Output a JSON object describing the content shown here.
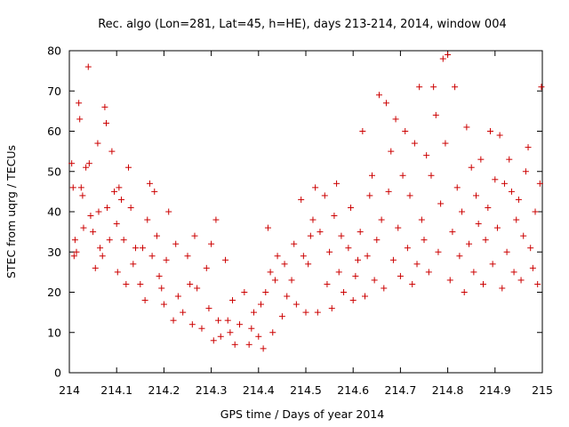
{
  "chart_data": {
    "type": "scatter",
    "title": "Rec. algo (Lon=281, Lat=45, h=HE), days 213-214, 2014, window 004",
    "xlabel": "GPS time / Days of year 2014",
    "ylabel": "STEC from uqrg / TECUs",
    "xlim": [
      214,
      215
    ],
    "ylim": [
      0,
      80
    ],
    "x_ticks": [
      "214",
      "214.1",
      "214.2",
      "214.3",
      "214.4",
      "214.5",
      "214.6",
      "214.7",
      "214.8",
      "214.9",
      "215"
    ],
    "y_ticks": [
      "0",
      "10",
      "20",
      "30",
      "40",
      "50",
      "60",
      "70",
      "80"
    ],
    "grid": false,
    "marker": "plus",
    "color": "#cc0000",
    "series": [
      {
        "points": [
          [
            214.005,
            52
          ],
          [
            214.008,
            46
          ],
          [
            214.01,
            29
          ],
          [
            214.012,
            33
          ],
          [
            214.015,
            30
          ],
          [
            214.02,
            67
          ],
          [
            214.022,
            63
          ],
          [
            214.025,
            46
          ],
          [
            214.028,
            44
          ],
          [
            214.03,
            36
          ],
          [
            214.035,
            51
          ],
          [
            214.04,
            76
          ],
          [
            214.042,
            52
          ],
          [
            214.045,
            39
          ],
          [
            214.05,
            35
          ],
          [
            214.055,
            26
          ],
          [
            214.06,
            57
          ],
          [
            214.062,
            40
          ],
          [
            214.065,
            31
          ],
          [
            214.07,
            29
          ],
          [
            214.075,
            66
          ],
          [
            214.078,
            62
          ],
          [
            214.08,
            41
          ],
          [
            214.085,
            33
          ],
          [
            214.09,
            55
          ],
          [
            214.095,
            45
          ],
          [
            214.1,
            37
          ],
          [
            214.102,
            25
          ],
          [
            214.105,
            46
          ],
          [
            214.11,
            43
          ],
          [
            214.115,
            33
          ],
          [
            214.12,
            22
          ],
          [
            214.125,
            51
          ],
          [
            214.13,
            41
          ],
          [
            214.135,
            27
          ],
          [
            214.14,
            31
          ],
          [
            214.15,
            22
          ],
          [
            214.155,
            31
          ],
          [
            214.16,
            18
          ],
          [
            214.165,
            38
          ],
          [
            214.17,
            47
          ],
          [
            214.175,
            29
          ],
          [
            214.18,
            45
          ],
          [
            214.185,
            34
          ],
          [
            214.19,
            24
          ],
          [
            214.195,
            21
          ],
          [
            214.2,
            17
          ],
          [
            214.205,
            28
          ],
          [
            214.21,
            40
          ],
          [
            214.22,
            13
          ],
          [
            214.225,
            32
          ],
          [
            214.23,
            19
          ],
          [
            214.24,
            15
          ],
          [
            214.25,
            29
          ],
          [
            214.255,
            22
          ],
          [
            214.26,
            12
          ],
          [
            214.265,
            34
          ],
          [
            214.27,
            21
          ],
          [
            214.28,
            11
          ],
          [
            214.29,
            26
          ],
          [
            214.295,
            16
          ],
          [
            214.3,
            32
          ],
          [
            214.305,
            8
          ],
          [
            214.31,
            38
          ],
          [
            214.315,
            13
          ],
          [
            214.32,
            9
          ],
          [
            214.33,
            28
          ],
          [
            214.335,
            13
          ],
          [
            214.34,
            10
          ],
          [
            214.345,
            18
          ],
          [
            214.35,
            7
          ],
          [
            214.36,
            12
          ],
          [
            214.37,
            20
          ],
          [
            214.38,
            7
          ],
          [
            214.385,
            11
          ],
          [
            214.39,
            15
          ],
          [
            214.4,
            9
          ],
          [
            214.405,
            17
          ],
          [
            214.41,
            6
          ],
          [
            214.415,
            20
          ],
          [
            214.42,
            36
          ],
          [
            214.425,
            25
          ],
          [
            214.43,
            10
          ],
          [
            214.435,
            23
          ],
          [
            214.44,
            29
          ],
          [
            214.45,
            14
          ],
          [
            214.455,
            27
          ],
          [
            214.46,
            19
          ],
          [
            214.47,
            23
          ],
          [
            214.475,
            32
          ],
          [
            214.48,
            17
          ],
          [
            214.49,
            43
          ],
          [
            214.495,
            29
          ],
          [
            214.5,
            15
          ],
          [
            214.505,
            27
          ],
          [
            214.51,
            34
          ],
          [
            214.515,
            38
          ],
          [
            214.52,
            46
          ],
          [
            214.525,
            15
          ],
          [
            214.53,
            35
          ],
          [
            214.54,
            44
          ],
          [
            214.545,
            22
          ],
          [
            214.55,
            30
          ],
          [
            214.555,
            16
          ],
          [
            214.56,
            39
          ],
          [
            214.565,
            47
          ],
          [
            214.57,
            25
          ],
          [
            214.575,
            34
          ],
          [
            214.58,
            20
          ],
          [
            214.59,
            31
          ],
          [
            214.595,
            41
          ],
          [
            214.6,
            18
          ],
          [
            214.605,
            24
          ],
          [
            214.61,
            28
          ],
          [
            214.615,
            35
          ],
          [
            214.62,
            60
          ],
          [
            214.625,
            19
          ],
          [
            214.63,
            29
          ],
          [
            214.635,
            44
          ],
          [
            214.64,
            49
          ],
          [
            214.645,
            23
          ],
          [
            214.65,
            33
          ],
          [
            214.655,
            69
          ],
          [
            214.66,
            38
          ],
          [
            214.665,
            21
          ],
          [
            214.67,
            67
          ],
          [
            214.675,
            45
          ],
          [
            214.68,
            55
          ],
          [
            214.685,
            28
          ],
          [
            214.69,
            63
          ],
          [
            214.695,
            36
          ],
          [
            214.7,
            24
          ],
          [
            214.705,
            49
          ],
          [
            214.71,
            60
          ],
          [
            214.715,
            31
          ],
          [
            214.72,
            44
          ],
          [
            214.725,
            22
          ],
          [
            214.73,
            57
          ],
          [
            214.735,
            27
          ],
          [
            214.74,
            71
          ],
          [
            214.745,
            38
          ],
          [
            214.75,
            33
          ],
          [
            214.755,
            54
          ],
          [
            214.76,
            25
          ],
          [
            214.765,
            49
          ],
          [
            214.77,
            71
          ],
          [
            214.775,
            64
          ],
          [
            214.78,
            30
          ],
          [
            214.785,
            42
          ],
          [
            214.79,
            78
          ],
          [
            214.795,
            57
          ],
          [
            214.8,
            79
          ],
          [
            214.805,
            23
          ],
          [
            214.81,
            35
          ],
          [
            214.815,
            71
          ],
          [
            214.82,
            46
          ],
          [
            214.825,
            29
          ],
          [
            214.83,
            40
          ],
          [
            214.835,
            20
          ],
          [
            214.84,
            61
          ],
          [
            214.845,
            32
          ],
          [
            214.85,
            51
          ],
          [
            214.855,
            25
          ],
          [
            214.86,
            44
          ],
          [
            214.865,
            37
          ],
          [
            214.87,
            53
          ],
          [
            214.875,
            22
          ],
          [
            214.88,
            33
          ],
          [
            214.885,
            41
          ],
          [
            214.89,
            60
          ],
          [
            214.895,
            27
          ],
          [
            214.9,
            48
          ],
          [
            214.905,
            36
          ],
          [
            214.91,
            59
          ],
          [
            214.915,
            21
          ],
          [
            214.92,
            47
          ],
          [
            214.925,
            30
          ],
          [
            214.93,
            53
          ],
          [
            214.935,
            45
          ],
          [
            214.94,
            25
          ],
          [
            214.945,
            38
          ],
          [
            214.95,
            43
          ],
          [
            214.955,
            23
          ],
          [
            214.96,
            34
          ],
          [
            214.965,
            50
          ],
          [
            214.97,
            56
          ],
          [
            214.975,
            31
          ],
          [
            214.98,
            26
          ],
          [
            214.985,
            40
          ],
          [
            214.99,
            22
          ],
          [
            214.995,
            47
          ],
          [
            214.998,
            71
          ]
        ]
      }
    ]
  }
}
